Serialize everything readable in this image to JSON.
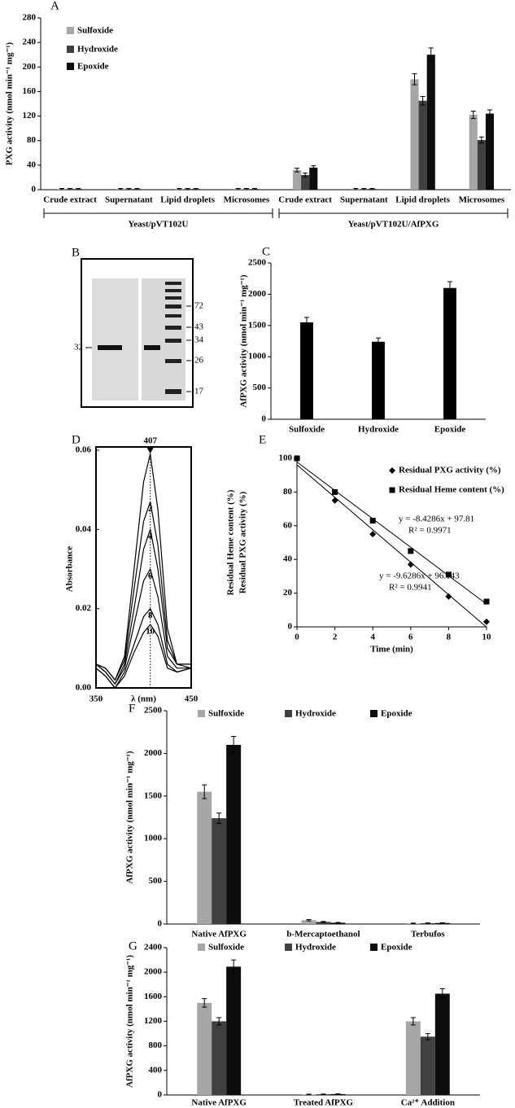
{
  "chart_data": [
    {
      "panel": "A",
      "type": "bar",
      "categories": [
        "Crude extract",
        "Supernatant",
        "Lipid droplets",
        "Microsomes",
        "Crude extract",
        "Supernatant",
        "Lipid droplets",
        "Microsomes"
      ],
      "group_labels": [
        "Yeast/pVT102U",
        "Yeast/pVT102U/AfPXG"
      ],
      "y_label": "PXG activity (nmol min⁻¹ mg⁻¹)",
      "series": [
        {
          "name": "Sulfoxide",
          "color": "#a6a6a6",
          "values": [
            1,
            1,
            1,
            1,
            32,
            1,
            180,
            122
          ],
          "errors": [
            1,
            1,
            1,
            1,
            3,
            1,
            9,
            6
          ]
        },
        {
          "name": "Hydroxide",
          "color": "#404040",
          "values": [
            1,
            1,
            1,
            1,
            24,
            1,
            145,
            81
          ],
          "errors": [
            1,
            1,
            1,
            1,
            3,
            1,
            7,
            5
          ]
        },
        {
          "name": "Epoxide",
          "color": "#0d0d0d",
          "values": [
            1,
            1,
            1,
            1,
            36,
            1,
            220,
            124
          ],
          "errors": [
            1,
            1,
            1,
            1,
            3,
            1,
            11,
            6
          ]
        }
      ],
      "ylim": [
        0,
        280
      ],
      "yticks": [
        0,
        40,
        80,
        120,
        160,
        200,
        240,
        280
      ]
    },
    {
      "panel": "C",
      "type": "bar",
      "categories": [
        "Sulfoxide",
        "Hydroxide",
        "Epoxide"
      ],
      "values": [
        1550,
        1240,
        2100
      ],
      "errors": [
        80,
        60,
        100
      ],
      "color": "#000000",
      "y_label": "AfPXG activity (nmol min⁻¹ mg⁻¹)",
      "ylim": [
        0,
        2500
      ],
      "yticks": [
        0,
        500,
        1000,
        1500,
        2000,
        2500
      ]
    },
    {
      "panel": "D",
      "type": "line",
      "x": [
        350,
        360,
        370,
        380,
        390,
        400,
        407,
        415,
        425,
        435,
        450
      ],
      "series": [
        {
          "color": "#000000",
          "values": [
            0.006,
            0.005,
            0.002,
            0.008,
            0.03,
            0.052,
            0.059,
            0.045,
            0.015,
            0.006,
            0.006
          ]
        },
        {
          "name": "2",
          "color": "#000000",
          "values": [
            0.006,
            0.005,
            0.002,
            0.007,
            0.025,
            0.042,
            0.047,
            0.036,
            0.012,
            0.006,
            0.006
          ]
        },
        {
          "name": "4",
          "color": "#000000",
          "values": [
            0.006,
            0.004,
            0.001,
            0.006,
            0.02,
            0.035,
            0.04,
            0.03,
            0.01,
            0.006,
            0.005
          ]
        },
        {
          "name": "6",
          "color": "#000000",
          "values": [
            0.006,
            0.004,
            0.001,
            0.005,
            0.016,
            0.027,
            0.03,
            0.023,
            0.008,
            0.005,
            0.005
          ]
        },
        {
          "name": "8",
          "color": "#000000",
          "values": [
            0.005,
            0.003,
            0,
            0.004,
            0.011,
            0.018,
            0.02,
            0.016,
            0.006,
            0.004,
            0.005
          ]
        },
        {
          "name": "10",
          "color": "#000000",
          "values": [
            0.005,
            0.003,
            0,
            0.003,
            0.009,
            0.014,
            0.016,
            0.013,
            0.005,
            0.004,
            0.005
          ]
        }
      ],
      "peak": 407,
      "x_label": "λ (nm)",
      "y_label": "Absorbance",
      "xlim": [
        350,
        450
      ],
      "xticks": [
        350,
        450
      ],
      "ylim": [
        0,
        0.06
      ],
      "yticks": [
        {
          "value": 0,
          "label": "0.00"
        },
        {
          "value": 0.02,
          "label": "0.02"
        },
        {
          "value": 0.04,
          "label": "0.04"
        },
        {
          "value": 0.06,
          "label": "0.06"
        }
      ]
    },
    {
      "panel": "E",
      "type": "scatter",
      "x": [
        0,
        2,
        4,
        6,
        8,
        10
      ],
      "series": [
        {
          "name": "Residual PXG activity (%)",
          "marker": "diamond",
          "color": "#000000",
          "values": [
            100,
            75,
            55,
            37,
            18,
            3
          ],
          "trendline": {
            "slope": -9.6286,
            "intercept": 96.143,
            "equation": "y = -9.6286x + 96.143",
            "r_squared": "R² = 0.9941"
          }
        },
        {
          "name": "Residual Heme content (%)",
          "marker": "square",
          "color": "#000000",
          "values": [
            100,
            80,
            63,
            45,
            31,
            15
          ],
          "trendline": {
            "slope": -8.4286,
            "intercept": 97.81,
            "equation": "y = -8.4286x + 97.81",
            "r_squared": "R² = 0.9971"
          }
        }
      ],
      "x_label": "Time (min)",
      "y_labels": [
        "Residual Heme content (%)",
        "Residual PXG activity (%)"
      ],
      "xlim": [
        0,
        10
      ],
      "xticks": [
        0,
        2,
        4,
        6,
        8,
        10
      ],
      "ylim": [
        0,
        100
      ],
      "yticks": [
        0,
        20,
        40,
        60,
        80,
        100
      ]
    },
    {
      "panel": "F",
      "type": "bar",
      "categories": [
        "Native AfPXG",
        "b-Mercaptoethanol",
        "Terbufos"
      ],
      "y_label": "AfPXG activity (nmol min⁻¹ mg⁻¹)",
      "series": [
        {
          "name": "Sulfoxide",
          "color": "#a6a6a6",
          "values": [
            1550,
            45,
            8
          ],
          "errors": [
            80,
            8,
            3
          ]
        },
        {
          "name": "Hydroxide",
          "color": "#404040",
          "values": [
            1240,
            25,
            10
          ],
          "errors": [
            60,
            5,
            3
          ]
        },
        {
          "name": "Epoxide",
          "color": "#0d0d0d",
          "values": [
            2100,
            15,
            12
          ],
          "errors": [
            100,
            4,
            4
          ]
        }
      ],
      "ylim": [
        0,
        2500
      ],
      "yticks": [
        0,
        500,
        1000,
        1500,
        2000,
        2500
      ]
    },
    {
      "panel": "G",
      "type": "bar",
      "categories": [
        "Native AfPXG",
        "Treated AfPXG",
        "Ca²⁺ Addition"
      ],
      "y_label": "AfPXG activity (nmol min⁻¹ mg⁻¹)",
      "series": [
        {
          "name": "Sulfoxide",
          "color": "#a6a6a6",
          "values": [
            1500,
            10,
            1200
          ],
          "errors": [
            70,
            3,
            60
          ]
        },
        {
          "name": "Hydroxide",
          "color": "#404040",
          "values": [
            1200,
            12,
            950
          ],
          "errors": [
            60,
            3,
            50
          ]
        },
        {
          "name": "Epoxide",
          "color": "#0d0d0d",
          "values": [
            2090,
            15,
            1650
          ],
          "errors": [
            110,
            4,
            80
          ]
        }
      ],
      "ylim": [
        0,
        2400
      ],
      "yticks": [
        0,
        400,
        800,
        1200,
        1600,
        2000,
        2400
      ]
    }
  ],
  "gel": {
    "panel": "B",
    "markers": [
      72,
      43,
      34,
      26,
      17
    ],
    "band": 32
  }
}
